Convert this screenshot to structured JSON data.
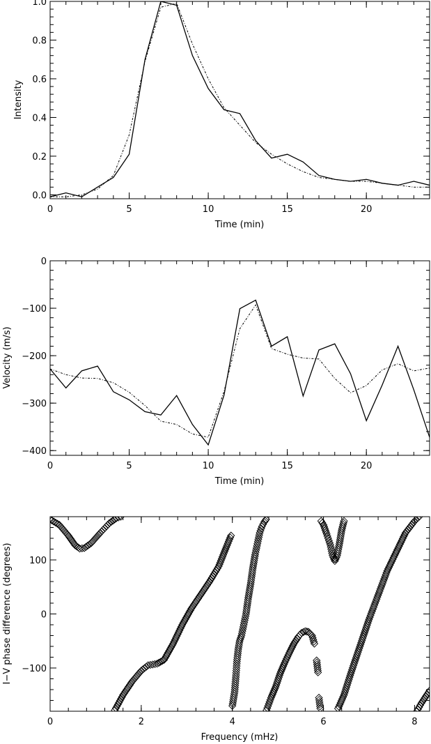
{
  "chart_data": [
    {
      "type": "line",
      "xlabel": "Time (min)",
      "ylabel": "Intensity",
      "xlim": [
        0,
        24
      ],
      "ylim": [
        -0.02,
        1.0
      ],
      "xticks": [
        0,
        5,
        10,
        15,
        20
      ],
      "yticks": [
        0.0,
        0.2,
        0.4,
        0.6,
        0.8,
        1.0
      ],
      "ytick_labels": [
        "0.0",
        "0.2",
        "0.4",
        "0.6",
        "0.8",
        "1.0"
      ],
      "grid": false,
      "series": [
        {
          "style": "solid",
          "x": [
            0,
            1,
            2,
            3,
            4,
            5,
            6,
            7,
            8,
            9,
            10,
            11,
            12,
            13,
            14,
            15,
            16,
            17,
            18,
            19,
            20,
            21,
            22,
            23,
            24
          ],
          "y": [
            -0.01,
            0.01,
            -0.01,
            0.04,
            0.09,
            0.21,
            0.7,
            1.0,
            0.98,
            0.72,
            0.55,
            0.44,
            0.42,
            0.28,
            0.19,
            0.21,
            0.17,
            0.1,
            0.08,
            0.07,
            0.08,
            0.06,
            0.05,
            0.07,
            0.05
          ]
        },
        {
          "style": "dash-dot",
          "x": [
            0,
            1,
            2,
            3,
            4,
            5,
            6,
            7,
            8,
            9,
            10,
            11,
            12,
            13,
            14,
            15,
            16,
            17,
            18,
            19,
            20,
            21,
            22,
            23,
            24
          ],
          "y": [
            -0.01,
            -0.01,
            0.0,
            0.03,
            0.1,
            0.31,
            0.69,
            0.97,
            0.99,
            0.78,
            0.6,
            0.45,
            0.36,
            0.27,
            0.21,
            0.16,
            0.12,
            0.09,
            0.08,
            0.07,
            0.07,
            0.06,
            0.05,
            0.04,
            0.04
          ]
        }
      ]
    },
    {
      "type": "line",
      "xlabel": "Time (min)",
      "ylabel": "Velocity (m/s)",
      "xlim": [
        0,
        24
      ],
      "ylim": [
        -410,
        0
      ],
      "xticks": [
        0,
        5,
        10,
        15,
        20
      ],
      "yticks": [
        -400,
        -300,
        -200,
        -100,
        0
      ],
      "ytick_labels": [
        "−400",
        "−300",
        "−200",
        "−100",
        "0"
      ],
      "grid": false,
      "series": [
        {
          "style": "solid",
          "x": [
            0,
            1,
            2,
            3,
            4,
            5,
            6,
            7,
            8,
            9,
            10,
            11,
            12,
            13,
            14,
            15,
            16,
            17,
            18,
            19,
            20,
            21,
            22,
            23,
            24
          ],
          "y": [
            -228,
            -268,
            -232,
            -222,
            -276,
            -293,
            -318,
            -325,
            -284,
            -345,
            -388,
            -283,
            -101,
            -83,
            -180,
            -160,
            -285,
            -188,
            -175,
            -238,
            -337,
            -262,
            -180,
            -272,
            -372
          ]
        },
        {
          "style": "dash-dot",
          "x": [
            0,
            1,
            2,
            3,
            4,
            5,
            6,
            7,
            8,
            9,
            10,
            11,
            12,
            13,
            14,
            15,
            16,
            17,
            18,
            19,
            20,
            21,
            22,
            23,
            24
          ],
          "y": [
            -228,
            -240,
            -247,
            -248,
            -257,
            -277,
            -305,
            -338,
            -345,
            -365,
            -372,
            -275,
            -143,
            -93,
            -185,
            -197,
            -205,
            -207,
            -248,
            -278,
            -263,
            -230,
            -217,
            -232,
            -226
          ]
        }
      ]
    },
    {
      "type": "scatter",
      "marker": "diamond",
      "xlabel": "Frequency (mHz)",
      "ylabel": "I−V phase difference (degrees)",
      "xlim": [
        0,
        8.33
      ],
      "ylim": [
        -180,
        180
      ],
      "xticks": [
        0,
        2,
        4,
        6,
        8
      ],
      "yticks": [
        -100,
        0,
        100
      ],
      "ytick_labels": [
        "−100",
        "0",
        "100"
      ],
      "grid": false,
      "segments": [
        {
          "x": [
            0.0,
            0.2,
            0.4,
            0.55,
            0.65,
            0.75,
            0.9,
            1.1,
            1.3,
            1.45,
            1.55
          ],
          "y": [
            175,
            165,
            145,
            127,
            121,
            122,
            131,
            150,
            168,
            177,
            180
          ]
        },
        {
          "x": [
            1.42,
            1.6,
            1.8,
            2.0,
            2.15,
            2.35,
            2.5,
            2.7,
            2.9,
            3.1,
            3.3,
            3.5,
            3.7,
            3.85,
            3.97
          ],
          "y": [
            -178,
            -150,
            -125,
            -105,
            -95,
            -92,
            -85,
            -55,
            -20,
            10,
            35,
            60,
            88,
            120,
            145
          ]
        },
        {
          "x": [
            4.0,
            4.05,
            4.08,
            4.1,
            4.13,
            4.16,
            4.2,
            4.25,
            4.3,
            4.35,
            4.4,
            4.45,
            4.5,
            4.55,
            4.6,
            4.65,
            4.7,
            4.74
          ],
          "y": [
            -170,
            -144,
            -113,
            -88,
            -65,
            -50,
            -40,
            -20,
            0,
            30,
            55,
            85,
            110,
            130,
            150,
            162,
            170,
            175
          ]
        },
        {
          "x": [
            4.75,
            4.85,
            4.95,
            5.05,
            5.15,
            5.25,
            5.35,
            5.45,
            5.52,
            5.6,
            5.67,
            5.75,
            5.8
          ],
          "y": [
            -178,
            -155,
            -135,
            -110,
            -90,
            -72,
            -55,
            -42,
            -35,
            -32,
            -33,
            -40,
            -55
          ]
        },
        {
          "x": [
            5.85,
            5.88
          ],
          "y": [
            -86,
            -108
          ]
        },
        {
          "x": [
            5.9,
            5.93
          ],
          "y": [
            -155,
            -175
          ]
        },
        {
          "x": [
            5.95,
            6.0,
            6.07,
            6.15,
            6.2,
            6.25,
            6.3,
            6.35,
            6.4,
            6.45
          ],
          "y": [
            172,
            165,
            148,
            128,
            108,
            98,
            108,
            130,
            155,
            172
          ]
        },
        {
          "x": [
            6.32,
            6.45,
            6.6,
            6.8,
            7.0,
            7.2,
            7.4,
            7.6,
            7.8,
            8.0,
            8.1
          ],
          "y": [
            -175,
            -150,
            -110,
            -60,
            -10,
            35,
            80,
            115,
            150,
            172,
            180
          ]
        },
        {
          "x": [
            8.05,
            8.15,
            8.25,
            8.33
          ],
          "y": [
            -180,
            -165,
            -152,
            -142
          ]
        }
      ]
    }
  ]
}
